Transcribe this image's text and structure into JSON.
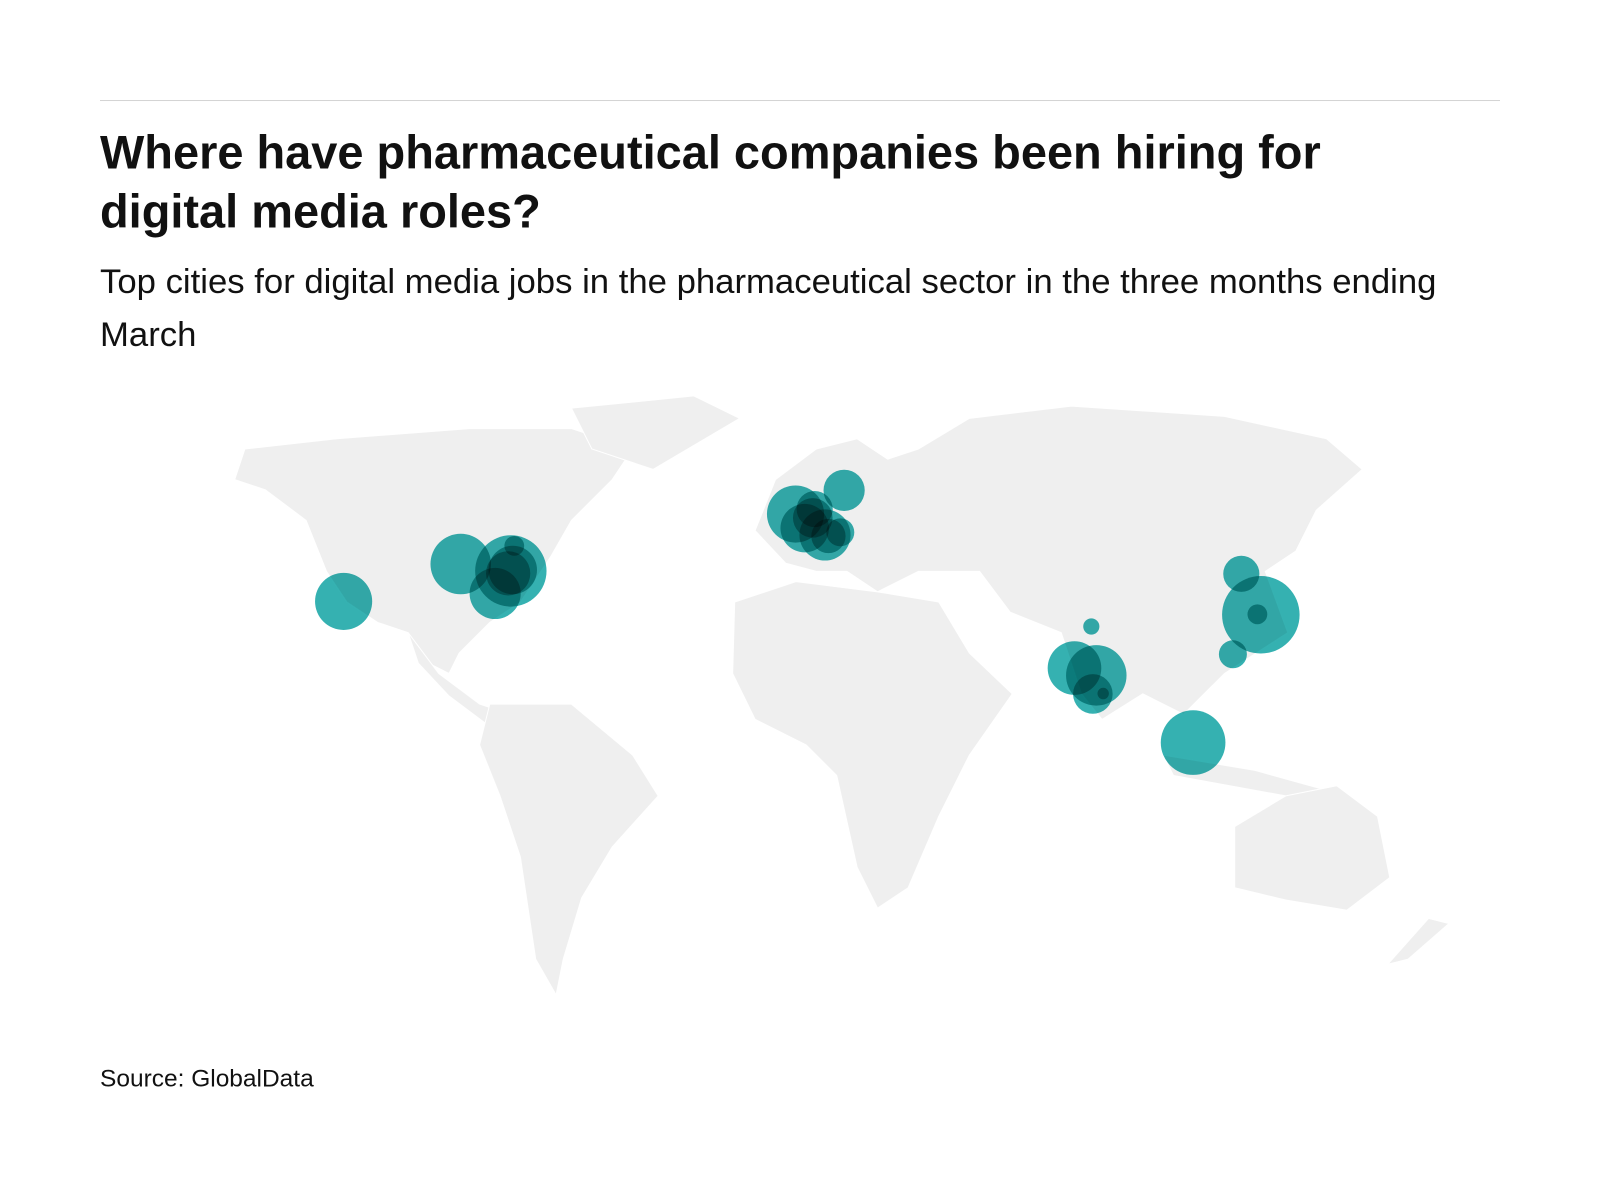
{
  "header": {
    "title": "Where have pharmaceutical companies been hiring for digital media roles?",
    "subtitle": "Top cities for digital media jobs in the pharmaceutical sector in the three months ending March"
  },
  "map": {
    "points": [
      {
        "lon": 121.5,
        "lat": 31.2,
        "value": 46
      },
      {
        "lon": -74.5,
        "lat": 40.5,
        "value": 39
      },
      {
        "lon": 103.8,
        "lat": 1.3,
        "value": 32
      },
      {
        "lon": -87.6,
        "lat": 41.9,
        "value": 28
      },
      {
        "lon": 78.5,
        "lat": 17.4,
        "value": 28
      },
      {
        "lon": -118.2,
        "lat": 34.1,
        "value": 25
      },
      {
        "lon": -0.1,
        "lat": 51.5,
        "value": 25
      },
      {
        "lon": 72.8,
        "lat": 19.1,
        "value": 22
      },
      {
        "lon": -78.6,
        "lat": 35.8,
        "value": 20
      },
      {
        "lon": 7.6,
        "lat": 47.6,
        "value": 20
      },
      {
        "lon": 2.3,
        "lat": 48.9,
        "value": 18
      },
      {
        "lon": -74.0,
        "lat": 40.7,
        "value": 18
      },
      {
        "lon": -75.2,
        "lat": 40.0,
        "value": 15
      },
      {
        "lon": 12.6,
        "lat": 55.7,
        "value": 13
      },
      {
        "lon": 77.6,
        "lat": 13.0,
        "value": 12
      },
      {
        "lon": 4.4,
        "lat": 50.8,
        "value": 12
      },
      {
        "lon": 4.9,
        "lat": 52.4,
        "value": 10
      },
      {
        "lon": 116.4,
        "lat": 39.9,
        "value": 10
      },
      {
        "lon": 8.5,
        "lat": 47.4,
        "value": 9
      },
      {
        "lon": 114.2,
        "lat": 22.3,
        "value": 6
      },
      {
        "lon": 11.6,
        "lat": 48.1,
        "value": 6
      },
      {
        "lon": 120.6,
        "lat": 31.3,
        "value": 3
      },
      {
        "lon": -73.6,
        "lat": 45.5,
        "value": 3
      },
      {
        "lon": 77.2,
        "lat": 28.6,
        "value": 2
      },
      {
        "lon": 80.3,
        "lat": 13.1,
        "value": 1
      }
    ]
  },
  "footer": {
    "source": "Source: GlobalData"
  }
}
